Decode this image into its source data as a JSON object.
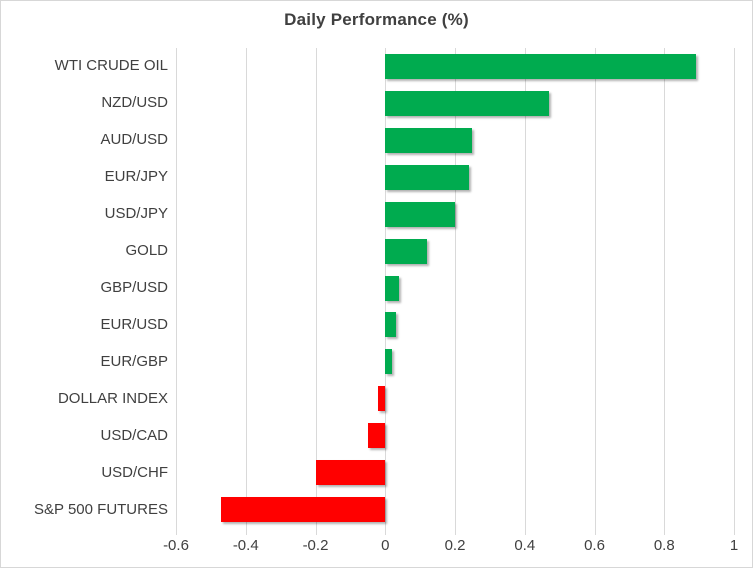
{
  "chart_data": {
    "type": "bar",
    "orientation": "horizontal",
    "title": "Daily Performance (%)",
    "categories": [
      "WTI CRUDE OIL",
      "NZD/USD",
      "AUD/USD",
      "EUR/JPY",
      "USD/JPY",
      "GOLD",
      "GBP/USD",
      "EUR/USD",
      "EUR/GBP",
      "DOLLAR INDEX",
      "USD/CAD",
      "USD/CHF",
      "S&P 500 FUTURES"
    ],
    "values": [
      0.89,
      0.47,
      0.25,
      0.24,
      0.2,
      0.12,
      0.04,
      0.03,
      0.02,
      -0.02,
      -0.05,
      -0.2,
      -0.47
    ],
    "xlim": [
      -0.6,
      1.0
    ],
    "x_ticks": [
      -0.6,
      -0.4,
      -0.2,
      0,
      0.2,
      0.4,
      0.6,
      0.8,
      1
    ],
    "x_tick_labels": [
      "-0.6",
      "-0.4",
      "-0.2",
      "0",
      "0.2",
      "0.4",
      "0.6",
      "0.8",
      "1"
    ],
    "grid": true,
    "legend": "none",
    "positive_color": "#00AB4F",
    "negative_color": "#FF0000",
    "gridline_color": "#D9D9D9",
    "text_color": "#404040"
  }
}
